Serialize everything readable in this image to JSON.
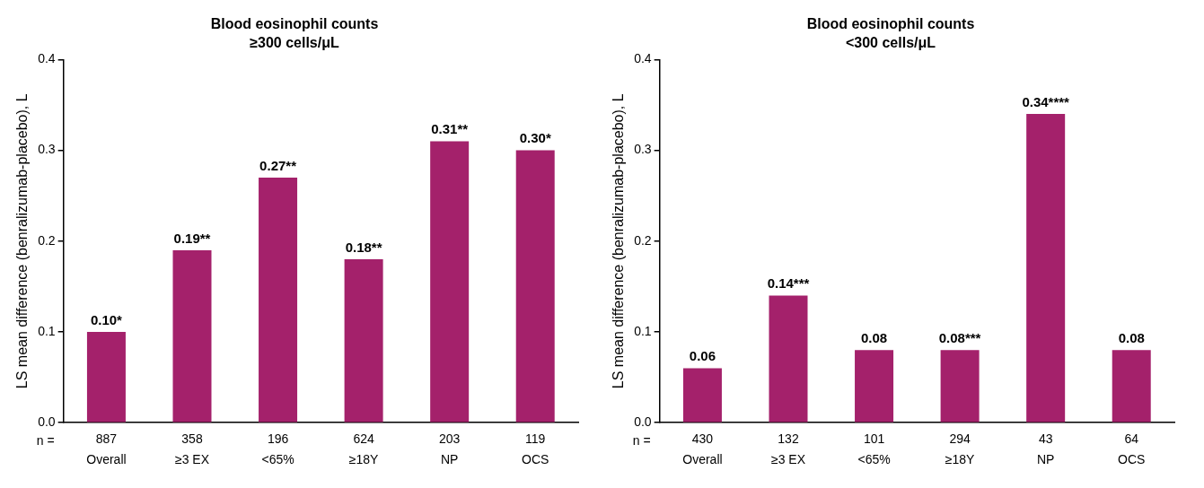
{
  "chart_data": [
    {
      "type": "bar",
      "title": "Blood eosinophil counts",
      "subtitle": "≥300 cells/μL",
      "ylabel": "LS mean difference (benralizumab-placebo), L",
      "categories": [
        "Overall",
        "≥3 EX",
        "<65%",
        "≥18Y",
        "NP",
        "OCS"
      ],
      "values": [
        0.1,
        0.19,
        0.27,
        0.18,
        0.31,
        0.3
      ],
      "value_labels": [
        "0.10*",
        "0.19**",
        "0.27**",
        "0.18**",
        "0.31**",
        "0.30*"
      ],
      "color": "#a4216b",
      "ylim": [
        0,
        0.4
      ],
      "yticks": [
        {
          "value": 0,
          "label": "0.0"
        },
        0.1,
        0.2,
        0.3,
        0.4
      ],
      "grid": false,
      "legend": false,
      "annotations": [
        "n =",
        "887",
        "358",
        "196",
        "624",
        "203",
        "119"
      ]
    },
    {
      "type": "bar",
      "title": "Blood eosinophil counts",
      "subtitle": "<300 cells/μL",
      "ylabel": "LS mean difference (benralizumab-placebo), L",
      "categories": [
        "Overall",
        "≥3 EX",
        "<65%",
        "≥18Y",
        "NP",
        "OCS"
      ],
      "values": [
        0.06,
        0.14,
        0.08,
        0.08,
        0.34,
        0.08
      ],
      "value_labels": [
        "0.06",
        "0.14***",
        "0.08",
        "0.08***",
        "0.34****",
        "0.08"
      ],
      "color": "#a4216b",
      "ylim": [
        0,
        0.4
      ],
      "yticks": [
        {
          "value": 0,
          "label": "0.0"
        },
        0.1,
        0.2,
        0.3,
        0.4
      ],
      "grid": false,
      "legend": false,
      "annotations": [
        "n =",
        "430",
        "132",
        "101",
        "294",
        "43",
        "64"
      ]
    }
  ]
}
